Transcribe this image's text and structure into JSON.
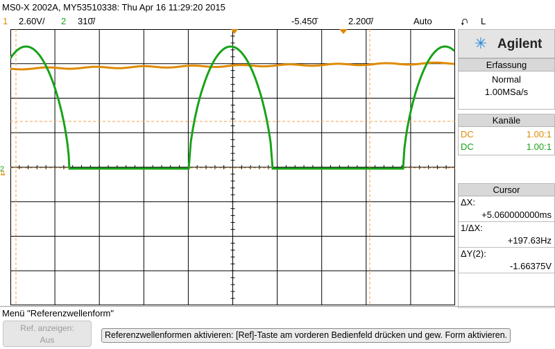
{
  "title": "MS0-X 2002A, MY53510338: Thu Apr 16 11:29:20 2015",
  "status": {
    "ch1_num": "1",
    "ch1_scale": "2.60V/",
    "ch2_num": "2",
    "ch2_scale": "310̄/",
    "time_position": "-5.450̄",
    "time_scale": "2.200̄/",
    "trigger_mode": "Auto",
    "trigger_icon": "⮏",
    "trigger_level": "L"
  },
  "panel": {
    "brand": "Agilent",
    "brand_icon": "starburst-logo",
    "acquisition": {
      "header": "Erfassung",
      "mode": "Normal",
      "rate": "1.00MSa/s"
    },
    "channels": {
      "header": "Kanäle",
      "rows": [
        {
          "coupling": "DC",
          "ratio": "1.00:1",
          "color": "#e08a00"
        },
        {
          "coupling": "DC",
          "ratio": "1.00:1",
          "color": "#17a317"
        }
      ]
    },
    "cursor": {
      "header": "Cursor",
      "dx_label": "ΔX:",
      "dx_value": "+5.060000000ms",
      "inv_dx_label": "1/ΔX:",
      "inv_dx_value": "+197.63Hz",
      "dy_label": "ΔY(2):",
      "dy_value": "-1.66375V"
    }
  },
  "menu": {
    "title": "Menü \"Referenzwellenform\"",
    "ref_button_line1": "Ref. anzeigen:",
    "ref_button_line2": "Aus",
    "help_text": "Referenzwellenformen aktivieren: [Ref]-Taste am vorderen Bedienfeld drücken und gew. Form aktivieren."
  },
  "colors": {
    "ch1": "#e08a00",
    "ch2": "#17a317",
    "grid": "#000000",
    "cursor": "#f0a040"
  }
}
